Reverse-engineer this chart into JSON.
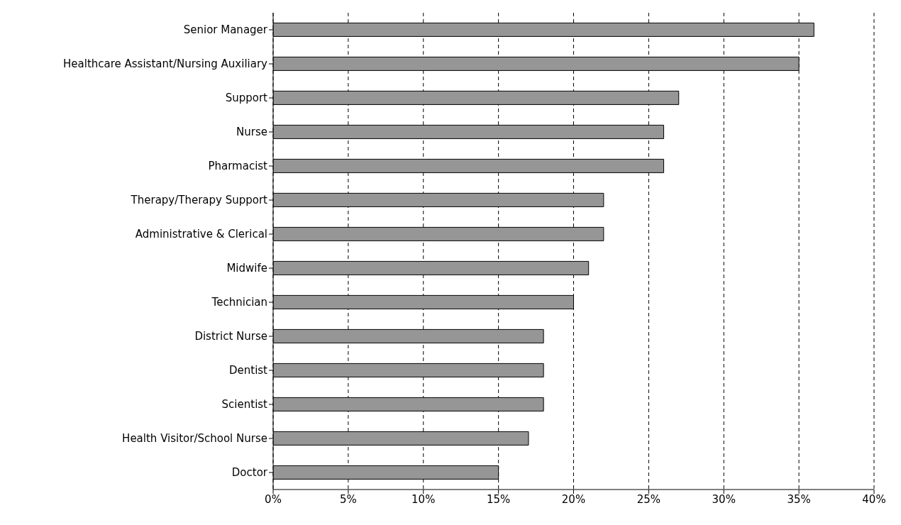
{
  "chart_data": {
    "type": "bar",
    "orientation": "horizontal",
    "categories": [
      "Senior Manager",
      "Healthcare Assistant/Nursing Auxiliary",
      "Support",
      "Nurse",
      "Pharmacist",
      "Therapy/Therapy Support",
      "Administrative & Clerical",
      "Midwife",
      "Technician",
      "District Nurse",
      "Dentist",
      "Scientist",
      "Health Visitor/School Nurse",
      "Doctor"
    ],
    "values": [
      36,
      35,
      27,
      26,
      26,
      22,
      22,
      21,
      20,
      18,
      18,
      18,
      17,
      15
    ],
    "color": "#969696",
    "xlim": [
      0,
      40
    ],
    "xticks": [
      {
        "value": 0,
        "label": "0%"
      },
      {
        "value": 5,
        "label": "5%"
      },
      {
        "value": 10,
        "label": "10%"
      },
      {
        "value": 15,
        "label": "15%"
      },
      {
        "value": 20,
        "label": "20%"
      },
      {
        "value": 25,
        "label": "25%"
      },
      {
        "value": 30,
        "label": "30%"
      },
      {
        "value": 35,
        "label": "35%"
      },
      {
        "value": 40,
        "label": "40%"
      }
    ],
    "grid": "x"
  }
}
